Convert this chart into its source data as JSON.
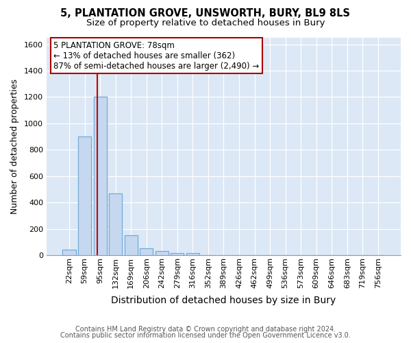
{
  "title_line1": "5, PLANTATION GROVE, UNSWORTH, BURY, BL9 8LS",
  "title_line2": "Size of property relative to detached houses in Bury",
  "xlabel": "Distribution of detached houses by size in Bury",
  "ylabel": "Number of detached properties",
  "footnote1": "Contains HM Land Registry data © Crown copyright and database right 2024.",
  "footnote2": "Contains public sector information licensed under the Open Government Licence v3.0.",
  "bar_labels": [
    "22sqm",
    "59sqm",
    "95sqm",
    "132sqm",
    "169sqm",
    "206sqm",
    "242sqm",
    "279sqm",
    "316sqm",
    "352sqm",
    "389sqm",
    "426sqm",
    "462sqm",
    "499sqm",
    "536sqm",
    "573sqm",
    "609sqm",
    "646sqm",
    "683sqm",
    "719sqm",
    "756sqm"
  ],
  "bar_values": [
    40,
    900,
    1200,
    470,
    150,
    50,
    30,
    15,
    18,
    0,
    0,
    0,
    0,
    0,
    0,
    0,
    0,
    0,
    0,
    0,
    0
  ],
  "bar_color": "#c5d8f0",
  "bar_edge_color": "#6ea8d8",
  "vline_x": 1.82,
  "vline_color": "#cc0000",
  "annotation_line1": "5 PLANTATION GROVE: 78sqm",
  "annotation_line2": "← 13% of detached houses are smaller (362)",
  "annotation_line3": "87% of semi-detached houses are larger (2,490) →",
  "annotation_box_edgecolor": "#aa0000",
  "annotation_box_facecolor": "white",
  "ylim": [
    0,
    1650
  ],
  "yticks": [
    0,
    200,
    400,
    600,
    800,
    1000,
    1200,
    1400,
    1600
  ],
  "plot_background": "#dce8f5",
  "grid_color": "white",
  "title_fontsize": 10.5,
  "subtitle_fontsize": 9.5,
  "xlabel_fontsize": 10,
  "ylabel_fontsize": 9,
  "annotation_fontsize": 8.5,
  "tick_fontsize": 8,
  "footnote_fontsize": 7
}
